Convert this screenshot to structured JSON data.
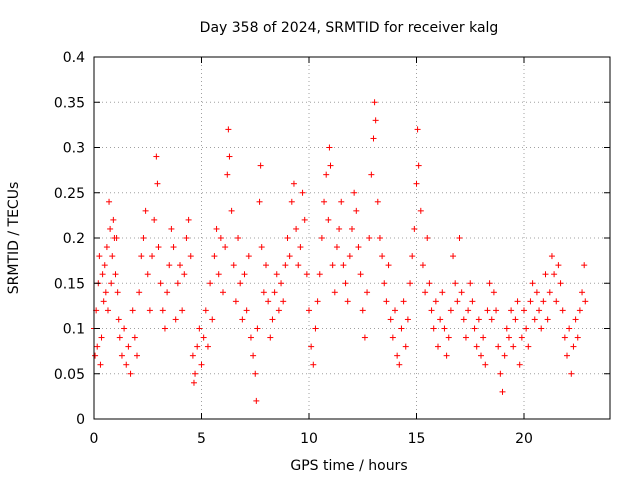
{
  "chart_data": {
    "type": "scatter",
    "title": "Day 358 of 2024, SRMTID for receiver kalg",
    "xlabel": "GPS time / hours",
    "ylabel": "SRMTID / TECUs",
    "xlim": [
      0,
      24
    ],
    "ylim": [
      0,
      0.4
    ],
    "xticks": [
      0,
      5,
      10,
      15,
      20
    ],
    "xtick_labels": [
      "0",
      "5",
      "10",
      "15",
      "20"
    ],
    "yticks": [
      0,
      0.05,
      0.1,
      0.15,
      0.2,
      0.25,
      0.3,
      0.35,
      0.4
    ],
    "ytick_labels": [
      "0",
      "0.05",
      "0.1",
      "0.15",
      "0.2",
      "0.25",
      "0.3",
      "0.35",
      "0.4"
    ],
    "grid": true,
    "marker": "+",
    "color": "#ff0000",
    "series": [
      {
        "name": "kalg",
        "points": [
          [
            0.0,
            0.1
          ],
          [
            0.05,
            0.07
          ],
          [
            0.1,
            0.12
          ],
          [
            0.15,
            0.08
          ],
          [
            0.2,
            0.15
          ],
          [
            0.25,
            0.18
          ],
          [
            0.3,
            0.06
          ],
          [
            0.35,
            0.09
          ],
          [
            0.4,
            0.16
          ],
          [
            0.45,
            0.13
          ],
          [
            0.5,
            0.17
          ],
          [
            0.55,
            0.14
          ],
          [
            0.6,
            0.19
          ],
          [
            0.65,
            0.12
          ],
          [
            0.7,
            0.24
          ],
          [
            0.75,
            0.21
          ],
          [
            0.8,
            0.15
          ],
          [
            0.85,
            0.18
          ],
          [
            0.9,
            0.22
          ],
          [
            0.95,
            0.2
          ],
          [
            1.0,
            0.16
          ],
          [
            1.05,
            0.2
          ],
          [
            1.1,
            0.14
          ],
          [
            1.15,
            0.11
          ],
          [
            1.2,
            0.09
          ],
          [
            1.3,
            0.07
          ],
          [
            1.4,
            0.1
          ],
          [
            1.5,
            0.06
          ],
          [
            1.6,
            0.08
          ],
          [
            1.7,
            0.05
          ],
          [
            1.8,
            0.12
          ],
          [
            1.9,
            0.09
          ],
          [
            2.0,
            0.07
          ],
          [
            2.1,
            0.14
          ],
          [
            2.2,
            0.18
          ],
          [
            2.3,
            0.2
          ],
          [
            2.4,
            0.23
          ],
          [
            2.5,
            0.16
          ],
          [
            2.6,
            0.12
          ],
          [
            2.7,
            0.18
          ],
          [
            2.8,
            0.22
          ],
          [
            2.9,
            0.29
          ],
          [
            2.95,
            0.26
          ],
          [
            3.0,
            0.19
          ],
          [
            3.1,
            0.15
          ],
          [
            3.2,
            0.12
          ],
          [
            3.3,
            0.1
          ],
          [
            3.4,
            0.14
          ],
          [
            3.5,
            0.17
          ],
          [
            3.6,
            0.21
          ],
          [
            3.7,
            0.19
          ],
          [
            3.8,
            0.11
          ],
          [
            3.9,
            0.15
          ],
          [
            4.0,
            0.17
          ],
          [
            4.1,
            0.12
          ],
          [
            4.2,
            0.16
          ],
          [
            4.3,
            0.2
          ],
          [
            4.4,
            0.22
          ],
          [
            4.5,
            0.18
          ],
          [
            4.6,
            0.07
          ],
          [
            4.65,
            0.04
          ],
          [
            4.7,
            0.05
          ],
          [
            4.8,
            0.08
          ],
          [
            4.9,
            0.1
          ],
          [
            5.0,
            0.06
          ],
          [
            5.1,
            0.09
          ],
          [
            5.2,
            0.12
          ],
          [
            5.3,
            0.08
          ],
          [
            5.4,
            0.15
          ],
          [
            5.5,
            0.11
          ],
          [
            5.6,
            0.18
          ],
          [
            5.7,
            0.21
          ],
          [
            5.8,
            0.16
          ],
          [
            5.9,
            0.2
          ],
          [
            6.0,
            0.14
          ],
          [
            6.1,
            0.19
          ],
          [
            6.2,
            0.27
          ],
          [
            6.25,
            0.32
          ],
          [
            6.3,
            0.29
          ],
          [
            6.4,
            0.23
          ],
          [
            6.5,
            0.17
          ],
          [
            6.6,
            0.13
          ],
          [
            6.7,
            0.2
          ],
          [
            6.8,
            0.15
          ],
          [
            6.9,
            0.11
          ],
          [
            7.0,
            0.16
          ],
          [
            7.1,
            0.12
          ],
          [
            7.2,
            0.18
          ],
          [
            7.3,
            0.09
          ],
          [
            7.4,
            0.07
          ],
          [
            7.5,
            0.05
          ],
          [
            7.55,
            0.02
          ],
          [
            7.6,
            0.1
          ],
          [
            7.7,
            0.24
          ],
          [
            7.75,
            0.28
          ],
          [
            7.8,
            0.19
          ],
          [
            7.9,
            0.14
          ],
          [
            8.0,
            0.17
          ],
          [
            8.1,
            0.13
          ],
          [
            8.2,
            0.09
          ],
          [
            8.3,
            0.11
          ],
          [
            8.4,
            0.14
          ],
          [
            8.5,
            0.16
          ],
          [
            8.6,
            0.12
          ],
          [
            8.7,
            0.15
          ],
          [
            8.8,
            0.13
          ],
          [
            8.9,
            0.17
          ],
          [
            9.0,
            0.2
          ],
          [
            9.1,
            0.18
          ],
          [
            9.2,
            0.24
          ],
          [
            9.3,
            0.26
          ],
          [
            9.4,
            0.21
          ],
          [
            9.5,
            0.17
          ],
          [
            9.6,
            0.19
          ],
          [
            9.7,
            0.25
          ],
          [
            9.8,
            0.22
          ],
          [
            9.9,
            0.16
          ],
          [
            10.0,
            0.12
          ],
          [
            10.1,
            0.08
          ],
          [
            10.2,
            0.06
          ],
          [
            10.3,
            0.1
          ],
          [
            10.4,
            0.13
          ],
          [
            10.5,
            0.16
          ],
          [
            10.6,
            0.2
          ],
          [
            10.7,
            0.24
          ],
          [
            10.8,
            0.27
          ],
          [
            10.9,
            0.22
          ],
          [
            10.95,
            0.3
          ],
          [
            11.0,
            0.28
          ],
          [
            11.1,
            0.17
          ],
          [
            11.2,
            0.14
          ],
          [
            11.3,
            0.19
          ],
          [
            11.4,
            0.21
          ],
          [
            11.5,
            0.24
          ],
          [
            11.6,
            0.17
          ],
          [
            11.7,
            0.15
          ],
          [
            11.8,
            0.13
          ],
          [
            11.9,
            0.18
          ],
          [
            12.0,
            0.21
          ],
          [
            12.1,
            0.25
          ],
          [
            12.2,
            0.23
          ],
          [
            12.3,
            0.19
          ],
          [
            12.4,
            0.16
          ],
          [
            12.5,
            0.12
          ],
          [
            12.6,
            0.09
          ],
          [
            12.7,
            0.14
          ],
          [
            12.8,
            0.2
          ],
          [
            12.9,
            0.27
          ],
          [
            13.0,
            0.31
          ],
          [
            13.05,
            0.35
          ],
          [
            13.1,
            0.33
          ],
          [
            13.2,
            0.24
          ],
          [
            13.3,
            0.2
          ],
          [
            13.4,
            0.18
          ],
          [
            13.5,
            0.15
          ],
          [
            13.6,
            0.13
          ],
          [
            13.7,
            0.17
          ],
          [
            13.8,
            0.11
          ],
          [
            13.9,
            0.09
          ],
          [
            14.0,
            0.12
          ],
          [
            14.1,
            0.07
          ],
          [
            14.2,
            0.06
          ],
          [
            14.3,
            0.1
          ],
          [
            14.4,
            0.13
          ],
          [
            14.5,
            0.08
          ],
          [
            14.6,
            0.11
          ],
          [
            14.7,
            0.15
          ],
          [
            14.8,
            0.18
          ],
          [
            14.9,
            0.21
          ],
          [
            15.0,
            0.26
          ],
          [
            15.05,
            0.32
          ],
          [
            15.1,
            0.28
          ],
          [
            15.2,
            0.23
          ],
          [
            15.3,
            0.17
          ],
          [
            15.4,
            0.14
          ],
          [
            15.5,
            0.2
          ],
          [
            15.6,
            0.15
          ],
          [
            15.7,
            0.12
          ],
          [
            15.8,
            0.1
          ],
          [
            15.9,
            0.13
          ],
          [
            16.0,
            0.08
          ],
          [
            16.1,
            0.11
          ],
          [
            16.2,
            0.14
          ],
          [
            16.3,
            0.1
          ],
          [
            16.4,
            0.07
          ],
          [
            16.5,
            0.09
          ],
          [
            16.6,
            0.12
          ],
          [
            16.7,
            0.18
          ],
          [
            16.8,
            0.15
          ],
          [
            16.9,
            0.13
          ],
          [
            17.0,
            0.2
          ],
          [
            17.1,
            0.14
          ],
          [
            17.2,
            0.11
          ],
          [
            17.3,
            0.09
          ],
          [
            17.4,
            0.12
          ],
          [
            17.5,
            0.15
          ],
          [
            17.6,
            0.13
          ],
          [
            17.7,
            0.1
          ],
          [
            17.8,
            0.08
          ],
          [
            17.9,
            0.11
          ],
          [
            18.0,
            0.07
          ],
          [
            18.1,
            0.09
          ],
          [
            18.2,
            0.06
          ],
          [
            18.3,
            0.12
          ],
          [
            18.4,
            0.15
          ],
          [
            18.5,
            0.11
          ],
          [
            18.6,
            0.14
          ],
          [
            18.7,
            0.12
          ],
          [
            18.8,
            0.08
          ],
          [
            18.9,
            0.05
          ],
          [
            19.0,
            0.03
          ],
          [
            19.1,
            0.07
          ],
          [
            19.2,
            0.1
          ],
          [
            19.3,
            0.09
          ],
          [
            19.4,
            0.12
          ],
          [
            19.5,
            0.08
          ],
          [
            19.6,
            0.11
          ],
          [
            19.7,
            0.13
          ],
          [
            19.8,
            0.06
          ],
          [
            19.9,
            0.09
          ],
          [
            20.0,
            0.12
          ],
          [
            20.1,
            0.1
          ],
          [
            20.2,
            0.08
          ],
          [
            20.3,
            0.13
          ],
          [
            20.4,
            0.15
          ],
          [
            20.5,
            0.11
          ],
          [
            20.6,
            0.14
          ],
          [
            20.7,
            0.12
          ],
          [
            20.8,
            0.1
          ],
          [
            20.9,
            0.13
          ],
          [
            21.0,
            0.16
          ],
          [
            21.1,
            0.11
          ],
          [
            21.2,
            0.14
          ],
          [
            21.3,
            0.18
          ],
          [
            21.4,
            0.16
          ],
          [
            21.5,
            0.13
          ],
          [
            21.6,
            0.17
          ],
          [
            21.7,
            0.15
          ],
          [
            21.8,
            0.12
          ],
          [
            21.9,
            0.09
          ],
          [
            22.0,
            0.07
          ],
          [
            22.1,
            0.1
          ],
          [
            22.2,
            0.05
          ],
          [
            22.3,
            0.08
          ],
          [
            22.4,
            0.11
          ],
          [
            22.5,
            0.09
          ],
          [
            22.6,
            0.12
          ],
          [
            22.7,
            0.14
          ],
          [
            22.8,
            0.17
          ],
          [
            22.85,
            0.13
          ]
        ]
      }
    ]
  }
}
